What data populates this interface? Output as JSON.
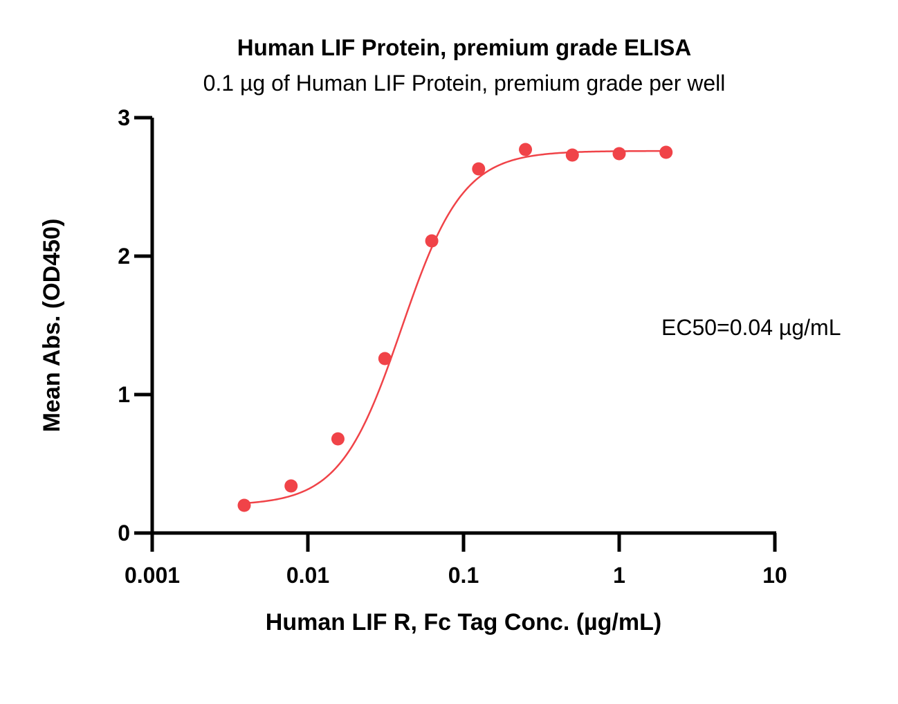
{
  "chart_data": {
    "type": "scatter",
    "title": "Human LIF Protein, premium grade ELISA",
    "subtitle": "0.1 µg of Human LIF Protein, premium grade per well",
    "xlabel": "Human LIF R, Fc Tag Conc. (µg/mL)",
    "ylabel": "Mean Abs. (OD450)",
    "x_scale": "log",
    "xlim": [
      0.001,
      10
    ],
    "ylim": [
      0,
      3
    ],
    "x_ticks": [
      0.001,
      0.01,
      0.1,
      1,
      10
    ],
    "x_tick_labels": [
      "0.001",
      "0.01",
      "0.1",
      "1",
      "10"
    ],
    "y_ticks": [
      0,
      1,
      2,
      3
    ],
    "y_tick_labels": [
      "0",
      "1",
      "2",
      "3"
    ],
    "grid": false,
    "legend": "none",
    "color": "#f04348",
    "annotation": "EC50=0.04 µg/mL",
    "series": [
      {
        "x": [
          0.0039,
          0.0078,
          0.0156,
          0.03125,
          0.0625,
          0.125,
          0.25,
          0.5,
          1,
          2
        ],
        "y": [
          0.2,
          0.34,
          0.68,
          1.26,
          2.11,
          2.63,
          2.77,
          2.73,
          2.74,
          2.75
        ],
        "fit": {
          "bottom": 0.2,
          "top": 2.76,
          "ec50": 0.04,
          "hill": 2.2
        }
      }
    ]
  }
}
